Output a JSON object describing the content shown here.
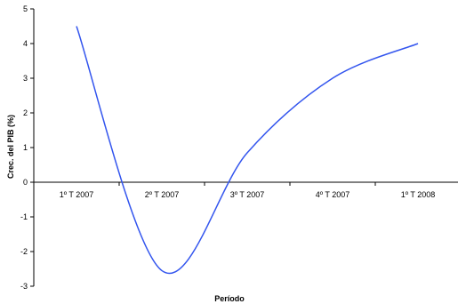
{
  "chart_data": {
    "type": "line",
    "categories": [
      "1º T 2007",
      "2º T 2007",
      "3º T 2007",
      "4º T 2007",
      "1º T 2008"
    ],
    "series": [
      {
        "values": [
          4.5,
          -2.55,
          0.85,
          3.0,
          4.0
        ]
      }
    ],
    "xlabel": "Período",
    "ylabel": "Crec. del PIB (%)",
    "ylim": [
      -3,
      5
    ],
    "yticks": [
      "5",
      "4",
      "3",
      "2",
      "1",
      "0",
      "-1",
      "-2",
      "-3"
    ],
    "grid": false,
    "legend": "none",
    "line_color": "#3355ee",
    "axis_color": "#000000"
  }
}
